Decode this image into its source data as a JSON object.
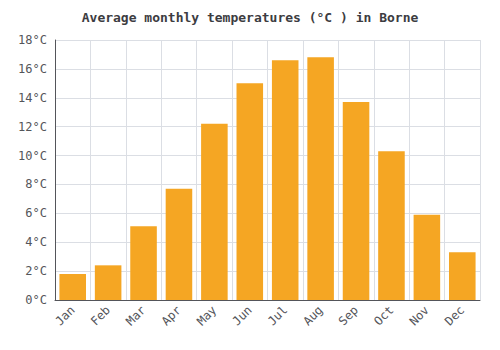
{
  "chart_data": {
    "type": "bar",
    "title": "Average monthly temperatures (°C ) in Borne",
    "categories": [
      "Jan",
      "Feb",
      "Mar",
      "Apr",
      "May",
      "Jun",
      "Jul",
      "Aug",
      "Sep",
      "Oct",
      "Nov",
      "Dec"
    ],
    "values": [
      1.8,
      2.4,
      5.1,
      7.7,
      12.2,
      15.0,
      16.6,
      16.8,
      13.7,
      10.3,
      5.9,
      3.3
    ],
    "color": "#F5A623",
    "ylim": [
      0,
      18
    ],
    "yticks": [
      {
        "value": 0,
        "label": "0°C"
      },
      {
        "value": 2,
        "label": "2°C"
      },
      {
        "value": 4,
        "label": "4°C"
      },
      {
        "value": 6,
        "label": "6°C"
      },
      {
        "value": 8,
        "label": "8°C"
      },
      {
        "value": 10,
        "label": "10°C"
      },
      {
        "value": 12,
        "label": "12°C"
      },
      {
        "value": 14,
        "label": "14°C"
      },
      {
        "value": 16,
        "label": "16°C"
      },
      {
        "value": 18,
        "label": "18°C"
      }
    ],
    "grid": true
  }
}
